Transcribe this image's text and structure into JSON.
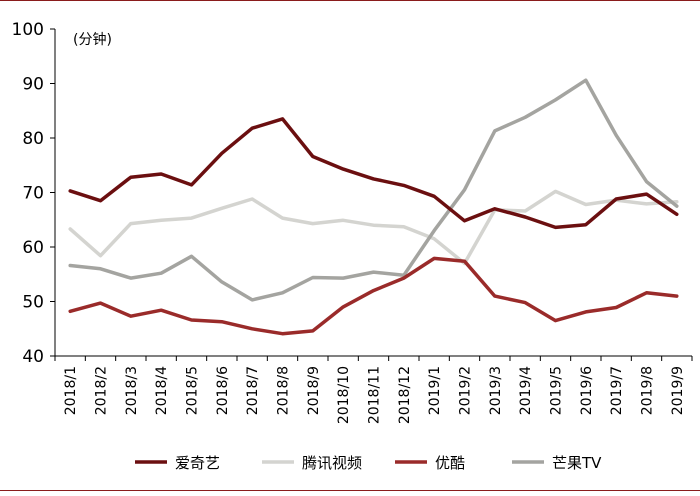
{
  "chart_data": {
    "type": "line",
    "unit_label": "(分钟)",
    "ylim": [
      40,
      100
    ],
    "yticks": [
      40,
      50,
      60,
      70,
      80,
      90,
      100
    ],
    "grid": false,
    "legend_position": "bottom",
    "categories": [
      "2018/1",
      "2018/2",
      "2018/3",
      "2018/4",
      "2018/5",
      "2018/6",
      "2018/7",
      "2018/8",
      "2018/9",
      "2018/10",
      "2018/11",
      "2018/12",
      "2019/1",
      "2019/2",
      "2019/3",
      "2019/4",
      "2019/5",
      "2019/6",
      "2019/7",
      "2019/8",
      "2019/9"
    ],
    "series": [
      {
        "name": "爱奇艺",
        "color": "#6b0f10",
        "values": [
          70.3,
          68.5,
          72.8,
          73.4,
          71.4,
          77.2,
          81.8,
          83.5,
          76.6,
          74.3,
          72.5,
          71.3,
          69.3,
          64.8,
          67.0,
          65.5,
          63.6,
          64.1,
          68.8,
          69.7,
          66.0
        ]
      },
      {
        "name": "腾讯视频",
        "color": "#d4d4d0",
        "values": [
          63.3,
          58.4,
          64.3,
          64.9,
          65.3,
          67.1,
          68.8,
          65.3,
          64.3,
          64.9,
          64.0,
          63.7,
          61.5,
          57.0,
          66.8,
          66.6,
          70.2,
          67.8,
          68.6,
          67.9,
          68.3
        ]
      },
      {
        "name": "优酷",
        "color": "#9a2b2a",
        "values": [
          48.2,
          49.7,
          47.3,
          48.4,
          46.6,
          46.3,
          45.0,
          44.1,
          44.6,
          49.0,
          52.0,
          54.3,
          57.9,
          57.4,
          51.0,
          49.8,
          46.5,
          48.1,
          48.9,
          51.6,
          51.0
        ]
      },
      {
        "name": "芒果TV",
        "color": "#a4a4a0",
        "values": [
          56.6,
          56.0,
          54.3,
          55.2,
          58.3,
          53.6,
          50.3,
          51.6,
          54.4,
          54.3,
          55.4,
          54.8,
          63.0,
          70.5,
          81.3,
          83.8,
          87.0,
          90.6,
          80.5,
          72.0,
          67.5
        ]
      }
    ]
  }
}
